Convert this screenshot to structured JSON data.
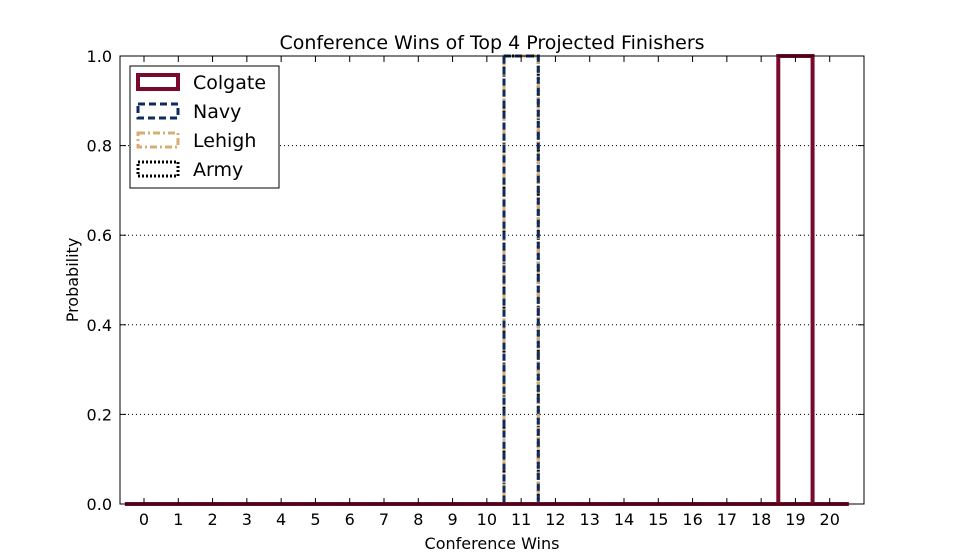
{
  "chart_data": {
    "type": "bar",
    "title": "Conference Wins of Top 4 Projected Finishers",
    "xlabel": "Conference Wins",
    "ylabel": "Probability",
    "categories": [
      "0",
      "1",
      "2",
      "3",
      "4",
      "5",
      "6",
      "7",
      "8",
      "9",
      "10",
      "11",
      "12",
      "13",
      "14",
      "15",
      "16",
      "17",
      "18",
      "19",
      "20"
    ],
    "ylim": [
      0,
      1.0
    ],
    "yticks": [
      "0.0",
      "0.2",
      "0.4",
      "0.6",
      "0.8",
      "1.0"
    ],
    "grid": true,
    "legend_position": "top-left",
    "series": [
      {
        "name": "Colgate",
        "color": "#7a0a2c",
        "line_style": "solid",
        "values": [
          0,
          0,
          0,
          0,
          0,
          0,
          0,
          0,
          0,
          0,
          0,
          0,
          0,
          0,
          0,
          0,
          0,
          0,
          0,
          1.0,
          0
        ]
      },
      {
        "name": "Navy",
        "color": "#0f2a5c",
        "line_style": "dashed",
        "values": [
          0,
          0,
          0,
          0,
          0,
          0,
          0,
          0,
          0,
          0,
          0,
          1.0,
          0,
          0,
          0,
          0,
          0,
          0,
          0,
          0,
          0
        ]
      },
      {
        "name": "Lehigh",
        "color": "#d8ad73",
        "line_style": "dashdot",
        "values": [
          0,
          0,
          0,
          0,
          0,
          0,
          0,
          0,
          0,
          0,
          0,
          1.0,
          0,
          0,
          0,
          0,
          0,
          0,
          0,
          0,
          0
        ]
      },
      {
        "name": "Army",
        "color": "#000000",
        "line_style": "dotted",
        "values": [
          0,
          0,
          0,
          0,
          0,
          0,
          0,
          0,
          0,
          0,
          0,
          1.0,
          0,
          0,
          0,
          0,
          0,
          0,
          0,
          0,
          0
        ]
      }
    ]
  }
}
